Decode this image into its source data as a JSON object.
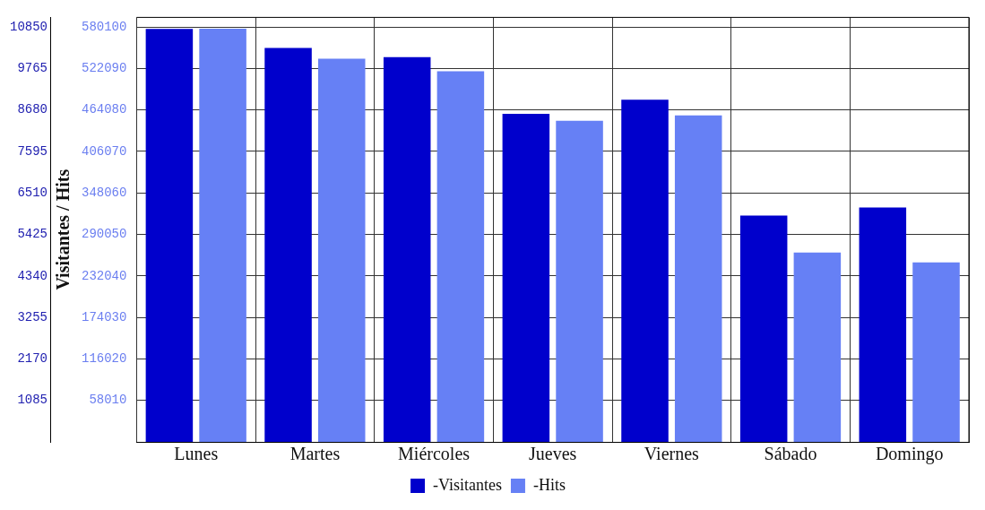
{
  "chart_data": {
    "type": "bar",
    "ylabel": "Visitantes / Hits",
    "categories": [
      "Lunes",
      "Martes",
      "Miércoles",
      "Jueves",
      "Viernes",
      "Sábado",
      "Domingo"
    ],
    "series": [
      {
        "name": "-Visitantes",
        "color": "#0000cc",
        "axis": "y",
        "values": [
          10800,
          10300,
          10060,
          8580,
          8950,
          5920,
          6130
        ]
      },
      {
        "name": "-Hits",
        "color": "#6680f5",
        "axis": "y2",
        "values": [
          577600,
          535600,
          518300,
          449000,
          456400,
          264700,
          251100
        ]
      }
    ],
    "ylim": [
      0,
      11100
    ],
    "yticks": [
      1085,
      2170,
      3255,
      4340,
      5425,
      6510,
      7595,
      8680,
      9765,
      10850
    ],
    "y2lim": [
      0,
      593500
    ],
    "y2ticks": [
      58010,
      116020,
      174030,
      232040,
      290050,
      348060,
      406070,
      464080,
      522090,
      580100
    ],
    "grid": true,
    "legend": "bottom"
  }
}
